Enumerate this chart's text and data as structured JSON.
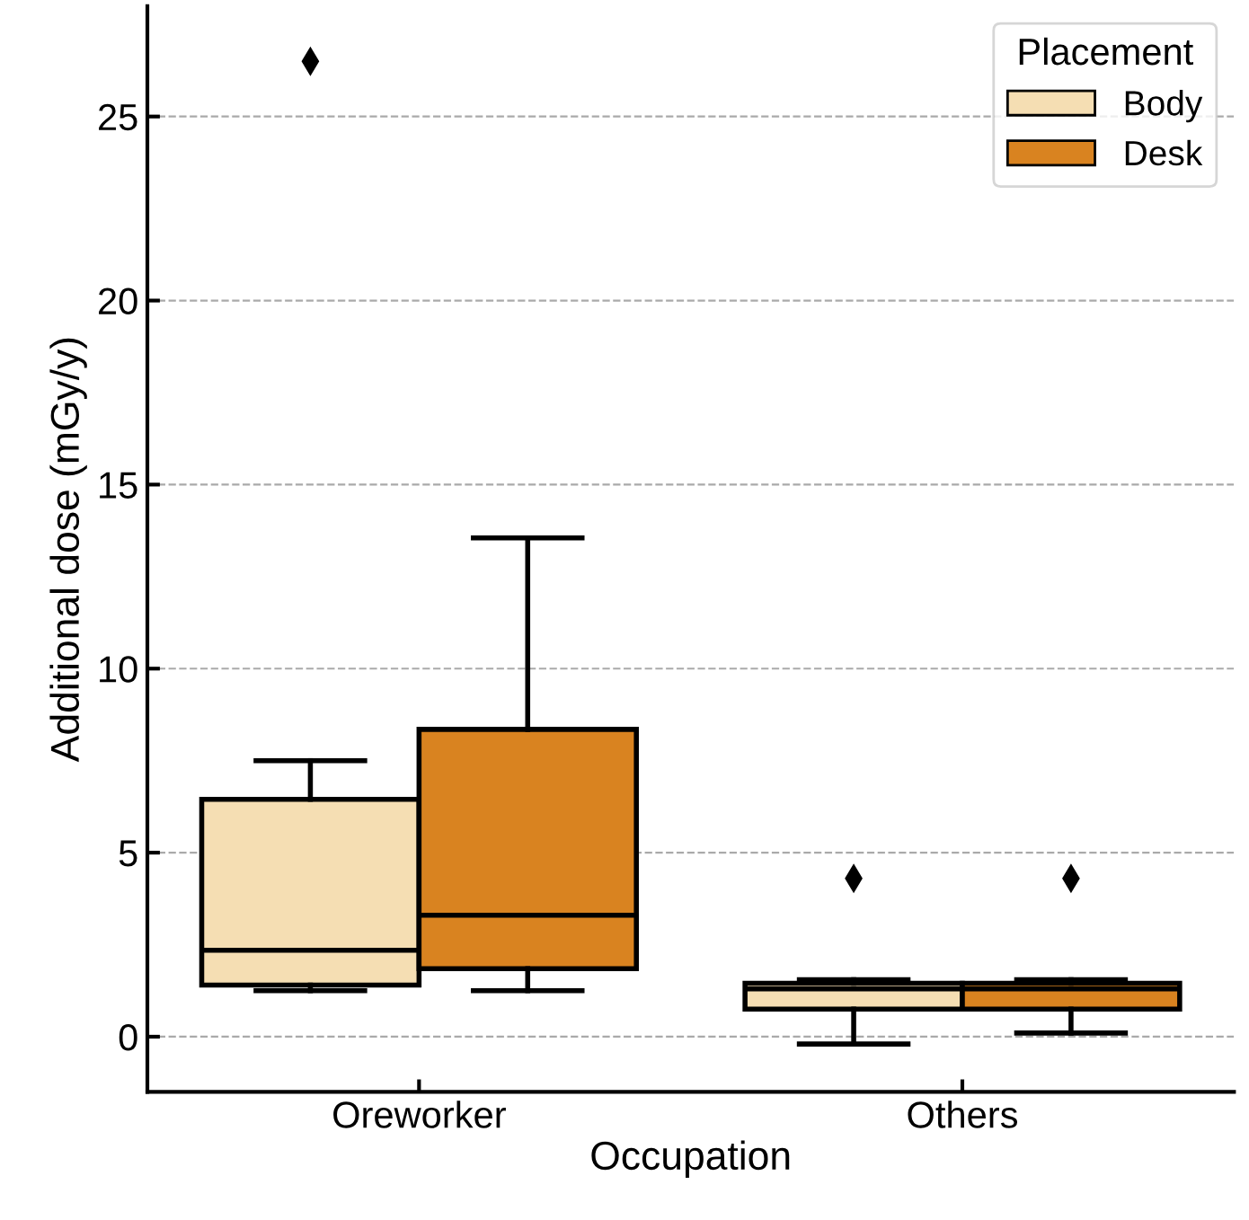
{
  "chart_data": {
    "type": "box",
    "xlabel": "Occupation",
    "ylabel": "Additional dose (mGy/y)",
    "legend_title": "Placement",
    "categories": [
      "Oreworker",
      "Others"
    ],
    "series": [
      {
        "name": "Body",
        "color": "#f5deb3",
        "boxes": [
          {
            "low": 1.25,
            "q1": 1.4,
            "median": 2.35,
            "q3": 6.45,
            "high": 7.5,
            "outliers": [
              26.5
            ]
          },
          {
            "low": -0.2,
            "q1": 0.75,
            "median": 1.3,
            "q3": 1.45,
            "high": 1.55,
            "outliers": [
              4.3
            ]
          }
        ]
      },
      {
        "name": "Desk",
        "color": "#d98320",
        "boxes": [
          {
            "low": 1.25,
            "q1": 1.85,
            "median": 3.3,
            "q3": 8.35,
            "high": 13.55
          },
          {
            "low": 0.1,
            "q1": 0.75,
            "median": 1.3,
            "q3": 1.45,
            "high": 1.55,
            "outliers": [
              4.3
            ]
          }
        ]
      }
    ],
    "ylim": [
      -1.5,
      28
    ],
    "yticks": [
      0,
      5,
      10,
      15,
      20,
      25
    ],
    "grid": "y",
    "legend": "top right",
    "marker": "diamond"
  }
}
